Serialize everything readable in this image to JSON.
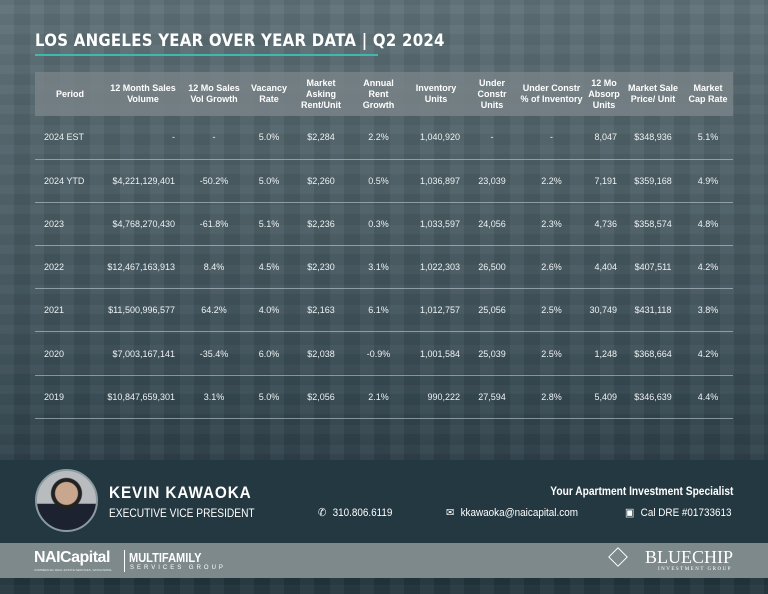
{
  "title": "LOS ANGELES YEAR OVER YEAR DATA | Q2 2024",
  "accent_color": "#3fb8ad",
  "table": {
    "headers": [
      "Period",
      "12 Month Sales Volume",
      "12 Mo Sales Vol Growth",
      "Vacancy Rate",
      "Market Asking Rent/Unit",
      "Annual Rent Growth",
      "Inventory Units",
      "Under Constr Units",
      "Under Constr % of Inventory",
      "12 Mo Absorp Units",
      "Market Sale Price/ Unit",
      "Market Cap Rate"
    ],
    "rows": [
      [
        "2024 EST",
        "-",
        "-",
        "5.0%",
        "$2,284",
        "2.2%",
        "1,040,920",
        "-",
        "-",
        "8,047",
        "$348,936",
        "5.1%"
      ],
      [
        "2024 YTD",
        "$4,221,129,401",
        "-50.2%",
        "5.0%",
        "$2,260",
        "0.5%",
        "1,036,897",
        "23,039",
        "2.2%",
        "7,191",
        "$359,168",
        "4.9%"
      ],
      [
        "2023",
        "$4,768,270,430",
        "-61.8%",
        "5.1%",
        "$2,236",
        "0.3%",
        "1,033,597",
        "24,056",
        "2.3%",
        "4,736",
        "$358,574",
        "4.8%"
      ],
      [
        "2022",
        "$12,467,163,913",
        "8.4%",
        "4.5%",
        "$2,230",
        "3.1%",
        "1,022,303",
        "26,500",
        "2.6%",
        "4,404",
        "$407,511",
        "4.2%"
      ],
      [
        "2021",
        "$11,500,996,577",
        "64.2%",
        "4.0%",
        "$2,163",
        "6.1%",
        "1,012,757",
        "25,056",
        "2.5%",
        "30,749",
        "$431,118",
        "3.8%"
      ],
      [
        "2020",
        "$7,003,167,141",
        "-35.4%",
        "6.0%",
        "$2,038",
        "-0.9%",
        "1,001,584",
        "25,039",
        "2.5%",
        "1,248",
        "$368,664",
        "4.2%"
      ],
      [
        "2019",
        "$10,847,659,301",
        "3.1%",
        "5.0%",
        "$2,056",
        "2.1%",
        "990,222",
        "27,594",
        "2.8%",
        "5,409",
        "$346,639",
        "4.4%"
      ]
    ]
  },
  "agent": {
    "name": "KEVIN KAWAOKA",
    "role": "EXECUTIVE VICE PRESIDENT",
    "tagline": "Your Apartment Investment Specialist",
    "phone": "310.806.6119",
    "email": "kkawaoka@naicapital.com",
    "license": "Cal DRE #01733613"
  },
  "brands": {
    "nai": "NAICapital",
    "nai_sub": "COMMERCIAL REAL ESTATE SERVICES, WORLDWIDE",
    "mf": "MULTIFAMILY",
    "mf_sub": "SERVICES GROUP",
    "bluechip": "BLUECHIP",
    "bluechip_sub": "INVESTMENT GROUP"
  }
}
